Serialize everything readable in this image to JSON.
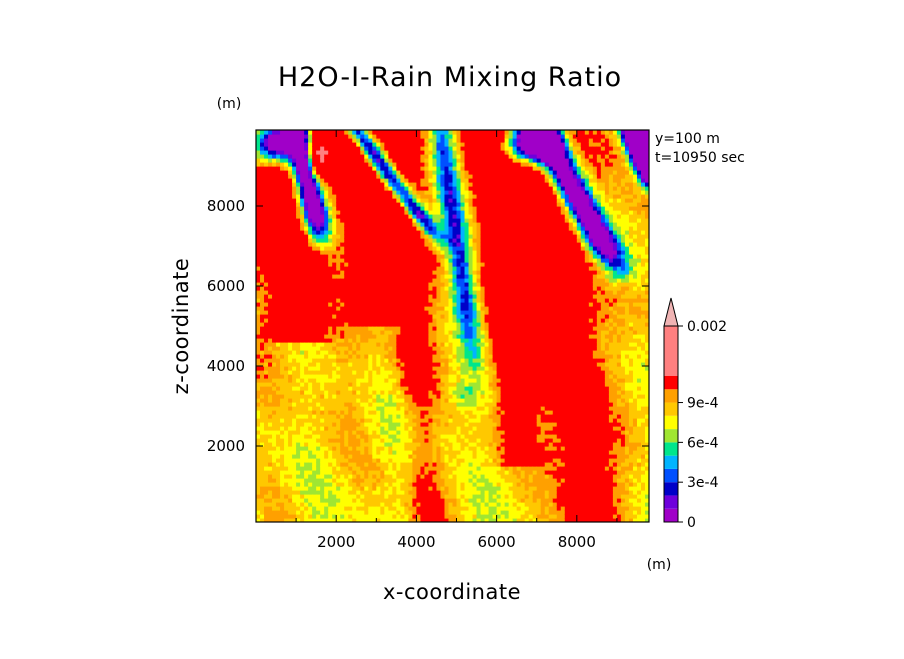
{
  "chart_data": {
    "type": "heatmap",
    "title": "H2O-I-Rain Mixing Ratio",
    "xlabel": "x-coordinate",
    "ylabel": "z-coordinate",
    "x_unit": "(m)",
    "y_unit": "(m)",
    "xlim": [
      0,
      9800
    ],
    "ylim": [
      100,
      9900
    ],
    "x_ticks": [
      2000,
      4000,
      6000,
      8000
    ],
    "y_ticks": [
      2000,
      4000,
      6000,
      8000
    ],
    "x_tick_labels": [
      "2000",
      "4000",
      "6000",
      "8000"
    ],
    "y_tick_labels": [
      "2000",
      "4000",
      "6000",
      "8000"
    ],
    "annotations": [
      "y=100 m",
      "t=10950 sec"
    ],
    "colorbar": {
      "levels": [
        0,
        0.0001,
        0.0002,
        0.0003,
        0.0004,
        0.0005,
        0.0006,
        0.0007,
        0.0008,
        0.0009,
        0.001,
        0.002
      ],
      "colors": [
        "#a000c8",
        "#6e00dc",
        "#0000c8",
        "#0050ff",
        "#00b4ff",
        "#00e68c",
        "#a0e632",
        "#ffff00",
        "#ffc800",
        "#ffa000",
        "#ff0000",
        "#ff8080"
      ],
      "labels": [
        {
          "text": "0",
          "value": 0
        },
        {
          "text": "3e-4",
          "value": 0.0003
        },
        {
          "text": "6e-4",
          "value": 0.0006
        },
        {
          "text": "9e-4",
          "value": 0.0009
        },
        {
          "text": "0.002",
          "value": 0.002
        }
      ],
      "extend": "max"
    },
    "features": {
      "background_level": 0.00088,
      "streaks": [
        {
          "x_top": 400,
          "x_bottom": 1700,
          "z_end": 4600,
          "amp": 0.0006,
          "width": 600
        },
        {
          "x_top": 2400,
          "x_bottom": 3800,
          "z_end": 5000,
          "amp": 0.0005,
          "width": 550
        },
        {
          "x_top": 3500,
          "x_bottom": 4300,
          "z_end": 100,
          "amp": 0.0003,
          "width": 500
        },
        {
          "x_top": 5800,
          "x_bottom": 6800,
          "z_end": 1500,
          "amp": 0.0004,
          "width": 500
        },
        {
          "x_top": 6800,
          "x_bottom": 8400,
          "z_end": 100,
          "amp": 0.0005,
          "width": 700
        }
      ],
      "dry_bands": [
        {
          "x_top": 1000,
          "x_bottom": 1600,
          "z_end": 7200,
          "amp": -0.0012,
          "width": 330
        },
        {
          "x_top": 2500,
          "x_bottom": 4500,
          "z_end": 7200,
          "amp": -0.001,
          "width": 280
        },
        {
          "x_top": 4600,
          "x_bottom": 5400,
          "z_end": 4400,
          "amp": -0.0006,
          "width": 300
        },
        {
          "x_top": 7100,
          "x_bottom": 9000,
          "z_end": 6400,
          "amp": -0.0012,
          "width": 420
        },
        {
          "x_top": 9300,
          "x_bottom": 9900,
          "z_end": 8400,
          "amp": -0.0011,
          "width": 260
        }
      ],
      "dry_blobs": [
        {
          "x": 500,
          "z": 9600,
          "sx": 550,
          "sz": 520,
          "amp": -0.0016
        },
        {
          "x": 6900,
          "z": 9600,
          "sx": 650,
          "sz": 500,
          "amp": -0.0016
        },
        {
          "x": 9700,
          "z": 9700,
          "sx": 320,
          "sz": 500,
          "amp": -0.0012
        }
      ],
      "moist_blobs": [
        {
          "x": 1600,
          "z": 9300,
          "sx": 260,
          "sz": 500,
          "amp": 0.0012
        },
        {
          "x": 5200,
          "z": 3300,
          "sx": 350,
          "sz": 350,
          "amp": -0.0002
        },
        {
          "x": 4200,
          "z": 2600,
          "sx": 900,
          "sz": 1500,
          "amp": -0.00015
        }
      ]
    }
  }
}
